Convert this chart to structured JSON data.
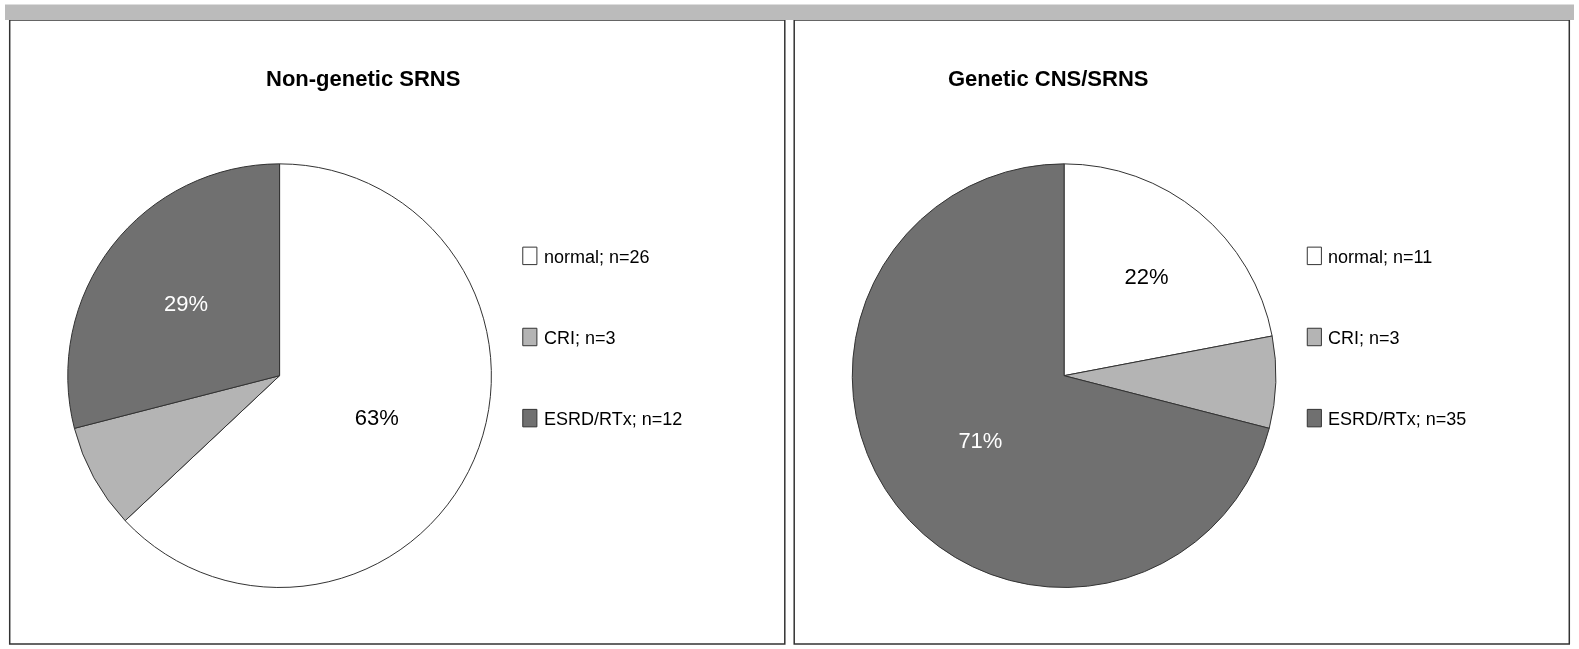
{
  "chart_data": [
    {
      "type": "pie",
      "title": "Non-genetic SRNS",
      "categories": [
        "normal; n=26",
        "CRI; n=3",
        "ESRD/RTx; n=12"
      ],
      "values": [
        63,
        8,
        29
      ],
      "colors": [
        "#ffffff",
        "#b4b4b4",
        "#707070"
      ],
      "value_labels": [
        "63%",
        null,
        "29%"
      ],
      "legend": "right"
    },
    {
      "type": "pie",
      "title": "Genetic CNS/SRNS",
      "categories": [
        "normal; n=11",
        "CRI; n=3",
        "ESRD/RTx; n=35"
      ],
      "values": [
        22,
        7,
        71
      ],
      "colors": [
        "#ffffff",
        "#b4b4b4",
        "#707070"
      ],
      "value_labels": [
        "22%",
        null,
        "71%"
      ],
      "legend": "right"
    }
  ]
}
